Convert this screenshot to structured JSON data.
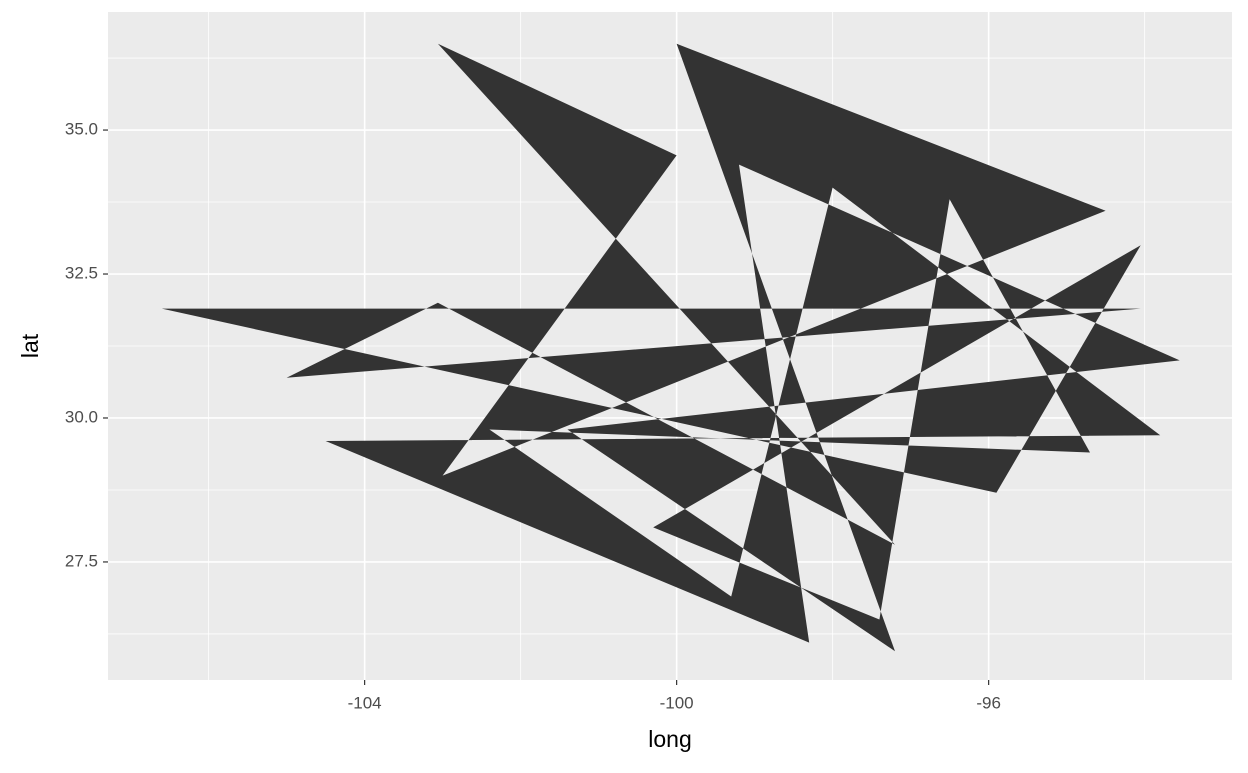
{
  "chart_data": {
    "type": "polygon",
    "xlabel": "long",
    "ylabel": "lat",
    "x": [
      -106.6,
      -94.05,
      -105.0,
      -103.06,
      -97.2,
      -103.06,
      -100.0,
      -103.0,
      -94.5,
      -100.0,
      -97.2,
      -101.4,
      -93.55,
      -99.2,
      -98.3,
      -104.5,
      -93.8,
      -98.0,
      -99.3,
      -102.4,
      -94.7,
      -96.5,
      -97.4,
      -100.3,
      -94.05,
      -95.9
    ],
    "y": [
      31.9,
      31.9,
      30.7,
      32.0,
      27.8,
      36.5,
      34.56,
      29.0,
      33.6,
      36.5,
      25.95,
      29.8,
      31.0,
      34.4,
      26.1,
      29.6,
      29.7,
      34.0,
      26.9,
      29.8,
      29.4,
      33.8,
      26.5,
      28.1,
      33.0,
      28.7
    ],
    "color": "#333333",
    "xlim": [
      -107.29,
      -92.88
    ],
    "ylim": [
      25.45,
      37.05
    ],
    "xticks": [
      -104,
      -100,
      -96
    ],
    "yticks": [
      {
        "value": 35,
        "label": "35.0"
      },
      32.5,
      {
        "value": 30,
        "label": "30.0"
      },
      27.5
    ],
    "x_minor_ticks": [
      -106,
      -102,
      -98,
      -94
    ],
    "y_minor_ticks": [
      36.25,
      33.75,
      31.25,
      28.75,
      26.25
    ],
    "grid": true
  }
}
